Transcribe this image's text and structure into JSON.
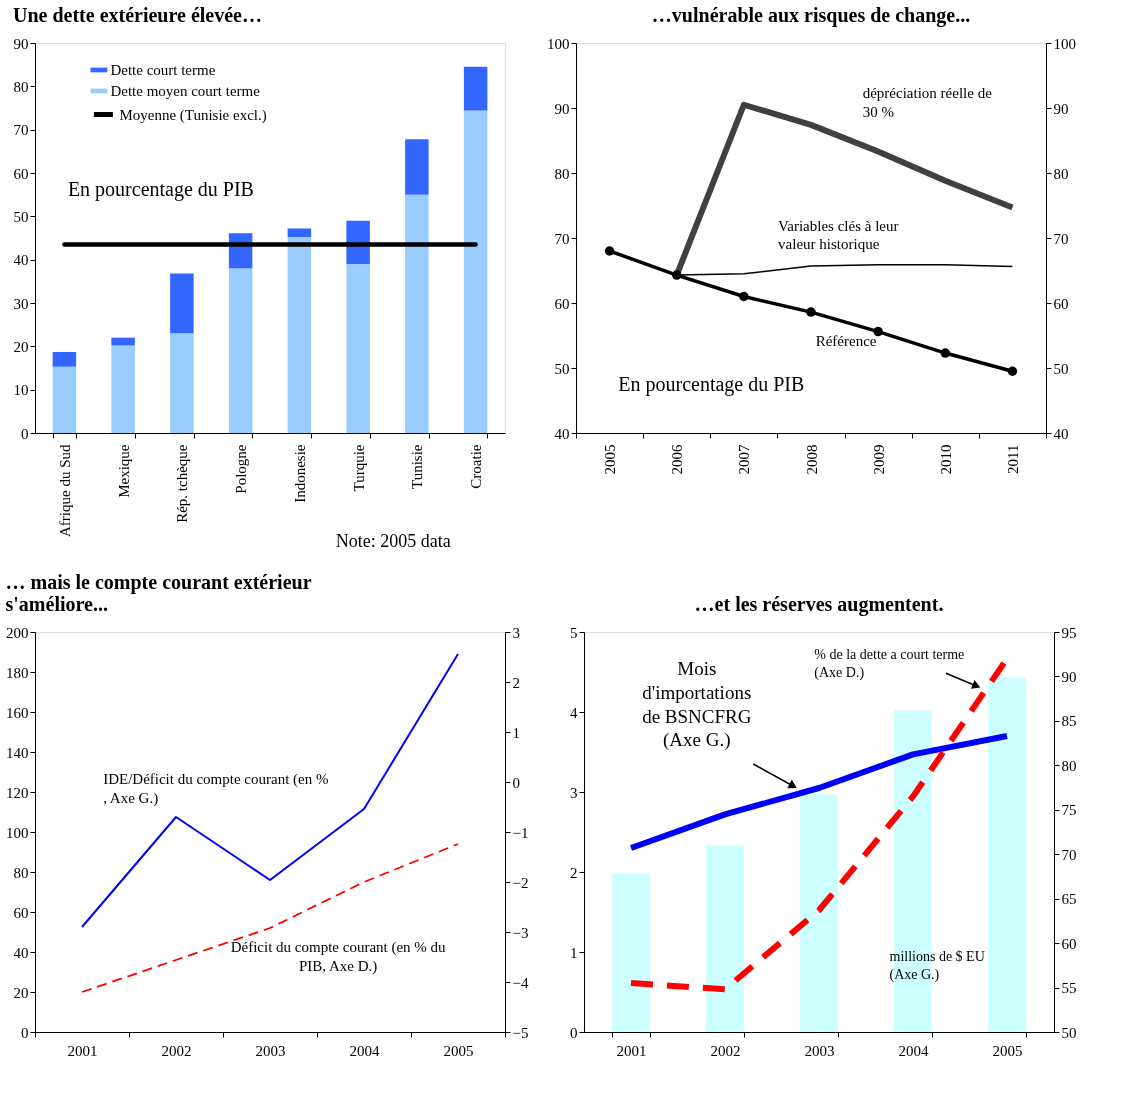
{
  "chart_data": [
    {
      "type": "bar",
      "title": "Une dette extérieure élevée…",
      "categories": [
        "Afrique du Sud",
        "Mexique",
        "Rép. tchèque",
        "Pologne",
        "Indonesie",
        "Turquie",
        "Tunisie",
        "Croatie"
      ],
      "stacked": true,
      "series": [
        {
          "name": "Dette moyen court terme",
          "color": "#99ccff",
          "values": [
            15.3,
            20.2,
            23,
            38,
            45.2,
            39,
            55,
            74.4
          ]
        },
        {
          "name": "Dette court terme",
          "color": "#3366ff",
          "values": [
            3.4,
            1.8,
            13.8,
            8.1,
            2.0,
            10,
            12.8,
            10.1
          ]
        }
      ],
      "ylim": [
        0,
        90
      ],
      "yticks": [
        0,
        10,
        20,
        30,
        40,
        50,
        60,
        70,
        80,
        90
      ],
      "ref_lines": [
        {
          "axis": "y",
          "value": 43.5,
          "label": "Moyenne (Tunisie excl.)",
          "color": "#000000"
        }
      ],
      "annotations": [
        "En pourcentage du PIB",
        "Note: 2005 data"
      ],
      "legend": "top left"
    },
    {
      "type": "line",
      "title": "…vulnérable aux risques de change...",
      "categories": [
        "2005",
        "2006",
        "2007",
        "2008",
        "2009",
        "2010",
        "2011"
      ],
      "series": [
        {
          "name": "dépréciation réelle de 30 %",
          "color": "#404040",
          "values": [
            null,
            64.3,
            90.5,
            87.4,
            83.3,
            78.8,
            74.7
          ]
        },
        {
          "name": "Variables clés à leur valeur historique",
          "color": "#000000",
          "values": [
            null,
            64.3,
            64.5,
            65.7,
            65.9,
            65.9,
            65.6
          ]
        },
        {
          "name": "Référence",
          "color": "#000000",
          "marker": "circle",
          "values": [
            68,
            64.3,
            61,
            58.6,
            55.6,
            52.3,
            49.5
          ]
        }
      ],
      "ylim": [
        40,
        100
      ],
      "yticks": [
        40,
        50,
        60,
        70,
        80,
        90,
        100
      ],
      "y2lim": [
        40,
        100
      ],
      "y2ticks": [
        40,
        50,
        60,
        70,
        80,
        90,
        100
      ],
      "annotations": [
        "En pourcentage du PIB"
      ]
    },
    {
      "type": "line",
      "title": "… mais le compte courant extérieur s'améliore...",
      "categories": [
        "2001",
        "2002",
        "2003",
        "2004",
        "2005"
      ],
      "series": [
        {
          "name": "IDE/Déficit du compte courant (en % , Axe G.)",
          "color": "#0000ff",
          "values": [
            52.5,
            107.5,
            76,
            111.5,
            189
          ]
        },
        {
          "name": "Déficit du compte courant (en % du PIB, Axe D.)",
          "color": "#ff0000",
          "axis": "y2",
          "line_style": "dashed",
          "values": [
            -4.2,
            -3.56,
            -2.92,
            -2.0,
            -1.24
          ]
        }
      ],
      "ylim": [
        0,
        200
      ],
      "yticks": [
        0,
        20,
        40,
        60,
        80,
        100,
        120,
        140,
        160,
        180,
        200
      ],
      "y2lim": [
        -5,
        3
      ],
      "y2ticks": [
        -5,
        -4,
        -3,
        -2,
        -1,
        0,
        1,
        2,
        3
      ]
    },
    {
      "type": "bar",
      "title": "…et les réserves augmentent.",
      "categories": [
        "2001",
        "2002",
        "2003",
        "2004",
        "2005"
      ],
      "series": [
        {
          "name": "millions de $ EU (Axe G.)",
          "type": "bar",
          "color": "#ccffff",
          "values": [
            1.98,
            2.33,
            2.97,
            4.02,
            4.43
          ]
        },
        {
          "name": "Mois d'importations de BSNCFRG (Axe G.)",
          "type": "line",
          "color": "#0000ff",
          "values": [
            2.3,
            2.72,
            3.05,
            3.47,
            3.7
          ]
        },
        {
          "name": "% de la dette a court terme (Axe D.)",
          "type": "line",
          "color": "#ff0000",
          "axis": "y2",
          "line_style": "dashed",
          "values": [
            55.5,
            54.8,
            63.7,
            76.5,
            92
          ]
        }
      ],
      "ylim": [
        0,
        5
      ],
      "yticks": [
        0,
        1,
        2,
        3,
        4,
        5
      ],
      "y2lim": [
        50,
        95
      ],
      "y2ticks": [
        50,
        55,
        60,
        65,
        70,
        75,
        80,
        85,
        90,
        95
      ]
    }
  ]
}
